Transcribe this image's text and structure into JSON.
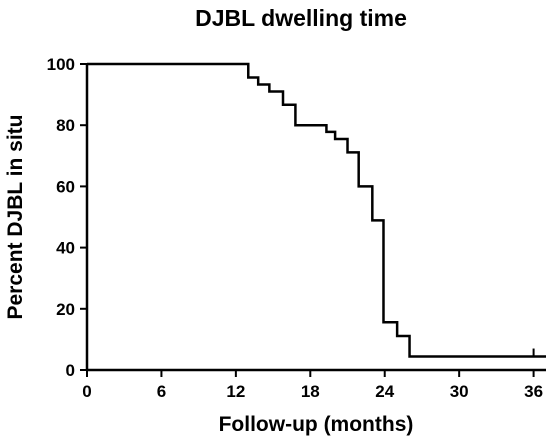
{
  "chart_data": {
    "type": "line",
    "subtype": "kaplan-meier step",
    "title": "DJBL dwelling time",
    "xlabel": "Follow-up (months)",
    "ylabel": "Percent DJBL in situ",
    "xlim": [
      0,
      37
    ],
    "ylim": [
      0,
      100
    ],
    "x_ticks": [
      "0",
      "6",
      "12",
      "18",
      "24",
      "30",
      "36"
    ],
    "y_ticks": [
      "0",
      "20",
      "40",
      "60",
      "80",
      "100"
    ],
    "grid": false,
    "legend": "none",
    "line_color": "#000000",
    "series": [
      {
        "x": [
          0,
          13.0,
          13.8,
          14.7,
          15.8,
          16.8,
          18.0,
          19.3,
          20.0,
          21.0,
          21.9,
          23.0,
          23.9,
          25.0,
          26.0,
          36.0,
          37.0
        ],
        "y": [
          100,
          95.6,
          93.3,
          91.0,
          86.7,
          80.0,
          80.0,
          77.8,
          75.5,
          71.1,
          60.0,
          48.9,
          15.6,
          11.1,
          4.4,
          4.4,
          4.4
        ],
        "censored_x": [
          36.0
        ]
      }
    ]
  }
}
